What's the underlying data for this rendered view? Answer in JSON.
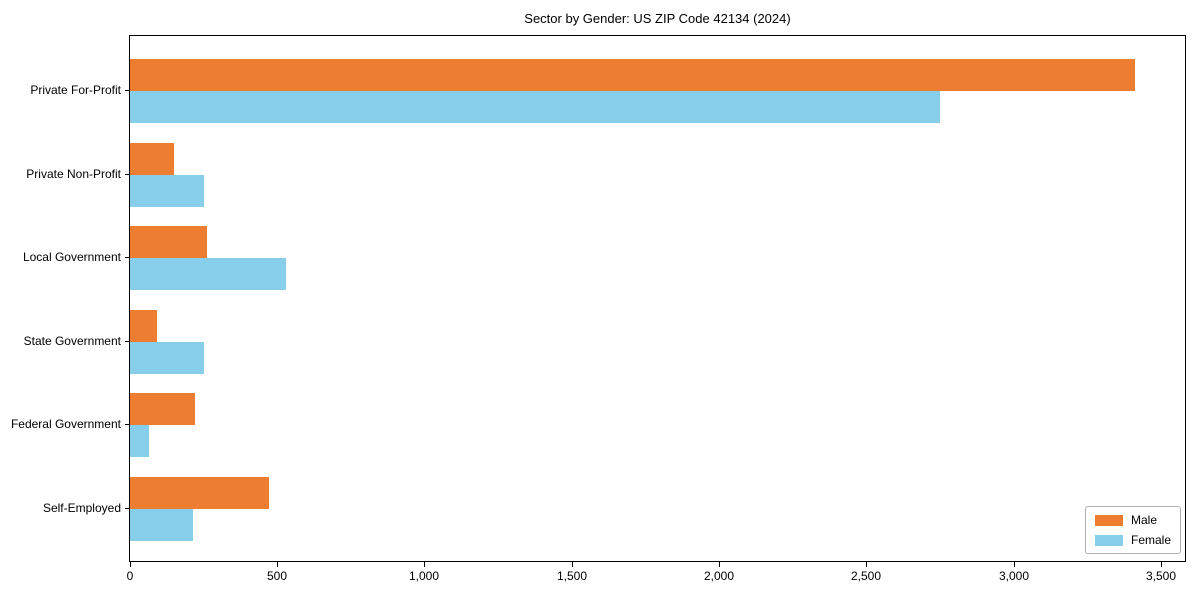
{
  "title": "Sector by Gender: US ZIP Code 42134 (2024)",
  "colors": {
    "male": "#ED7D31",
    "female": "#87CEEB",
    "axis": "#000000",
    "text": "#000000",
    "legend_border": "#b0b0b0",
    "background": "#ffffff"
  },
  "legend": {
    "position": "lower right",
    "items": [
      "Male",
      "Female"
    ]
  },
  "chart_data": {
    "type": "bar",
    "orientation": "horizontal",
    "title": "Sector by Gender: US ZIP Code 42134 (2024)",
    "xlabel": "",
    "ylabel": "",
    "grid": false,
    "legend_position": "lower right",
    "categories": [
      "Private For-Profit",
      "Private Non-Profit",
      "Local Government",
      "State Government",
      "Federal Government",
      "Self-Employed"
    ],
    "series": [
      {
        "name": "Male",
        "color": "#ED7D31",
        "values": [
          3410,
          150,
          260,
          90,
          220,
          470
        ]
      },
      {
        "name": "Female",
        "color": "#87CEEB",
        "values": [
          2750,
          250,
          530,
          250,
          65,
          215
        ]
      }
    ],
    "xlim": [
      0,
      3580
    ],
    "xticks": [
      0,
      500,
      1000,
      1500,
      2000,
      2500,
      3000,
      3500
    ],
    "xtick_labels": [
      "0",
      "500",
      "1,000",
      "1,500",
      "2,000",
      "2,500",
      "3,000",
      "3,500"
    ]
  }
}
